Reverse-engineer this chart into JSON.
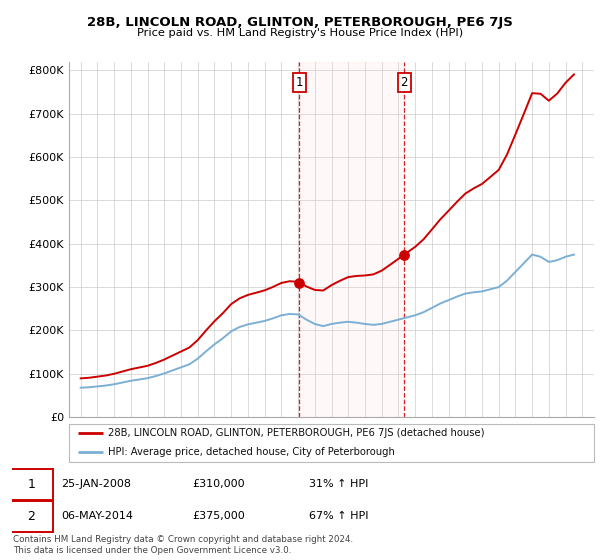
{
  "title1": "28B, LINCOLN ROAD, GLINTON, PETERBOROUGH, PE6 7JS",
  "title2": "Price paid vs. HM Land Registry's House Price Index (HPI)",
  "legend_label_red": "28B, LINCOLN ROAD, GLINTON, PETERBOROUGH, PE6 7JS (detached house)",
  "legend_label_blue": "HPI: Average price, detached house, City of Peterborough",
  "sale1_date": "25-JAN-2008",
  "sale1_price": "£310,000",
  "sale1_hpi": "31% ↑ HPI",
  "sale2_date": "06-MAY-2014",
  "sale2_price": "£375,000",
  "sale2_hpi": "67% ↑ HPI",
  "footer": "Contains HM Land Registry data © Crown copyright and database right 2024.\nThis data is licensed under the Open Government Licence v3.0.",
  "red_color": "#cc0000",
  "blue_color": "#7BAFD4",
  "sale1_x": 2008.07,
  "sale1_y": 310000,
  "sale2_x": 2014.35,
  "sale2_y": 375000,
  "ylim_min": 0,
  "ylim_max": 820000,
  "xlim_min": 1994.3,
  "xlim_max": 2025.7,
  "background_color": "#ffffff",
  "grid_color": "#cccccc",
  "years_hpi": [
    1995.0,
    1995.5,
    1996.0,
    1996.5,
    1997.0,
    1997.5,
    1998.0,
    1998.5,
    1999.0,
    1999.5,
    2000.0,
    2000.5,
    2001.0,
    2001.5,
    2002.0,
    2002.5,
    2003.0,
    2003.5,
    2004.0,
    2004.5,
    2005.0,
    2005.5,
    2006.0,
    2006.5,
    2007.0,
    2007.5,
    2008.0,
    2008.5,
    2009.0,
    2009.5,
    2010.0,
    2010.5,
    2011.0,
    2011.5,
    2012.0,
    2012.5,
    2013.0,
    2013.5,
    2014.0,
    2014.5,
    2015.0,
    2015.5,
    2016.0,
    2016.5,
    2017.0,
    2017.5,
    2018.0,
    2018.5,
    2019.0,
    2019.5,
    2020.0,
    2020.5,
    2021.0,
    2021.5,
    2022.0,
    2022.5,
    2023.0,
    2023.5,
    2024.0,
    2024.5
  ],
  "hpi_values": [
    68000,
    69000,
    71000,
    73000,
    76000,
    80000,
    84000,
    87000,
    90000,
    95000,
    101000,
    108000,
    115000,
    122000,
    135000,
    152000,
    168000,
    182000,
    198000,
    208000,
    214000,
    218000,
    222000,
    228000,
    235000,
    238000,
    237000,
    225000,
    215000,
    210000,
    215000,
    218000,
    220000,
    218000,
    215000,
    213000,
    215000,
    220000,
    225000,
    230000,
    235000,
    242000,
    252000,
    262000,
    270000,
    278000,
    285000,
    288000,
    290000,
    295000,
    300000,
    315000,
    335000,
    355000,
    375000,
    370000,
    358000,
    362000,
    370000,
    375000
  ],
  "yticks": [
    0,
    100000,
    200000,
    300000,
    400000,
    500000,
    600000,
    700000,
    800000
  ],
  "ytick_labels": [
    "£0",
    "£100K",
    "£200K",
    "£300K",
    "£400K",
    "£500K",
    "£600K",
    "£700K",
    "£800K"
  ]
}
